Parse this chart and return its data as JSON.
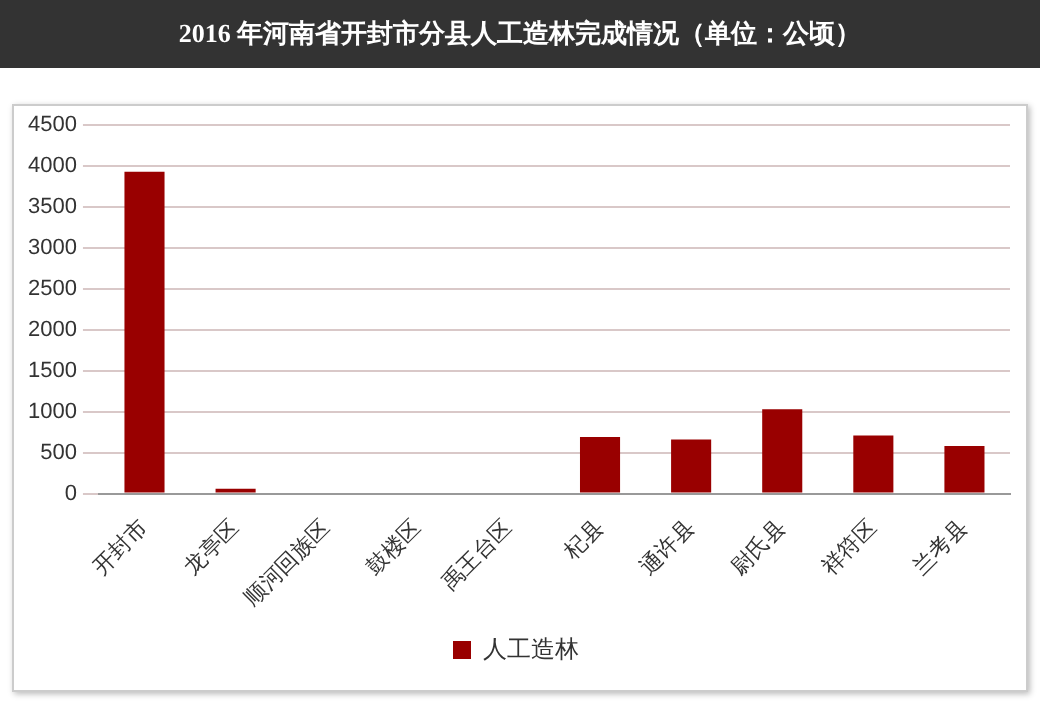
{
  "chart_data": {
    "type": "bar",
    "title": "2016 年河南省开封市分县人工造林完成情况（单位：公顷）",
    "categories": [
      "开封市",
      "龙亭区",
      "顺河回族区",
      "鼓楼区",
      "禹王台区",
      "杞县",
      "通许县",
      "尉氏县",
      "祥符区",
      "兰考县"
    ],
    "series": [
      {
        "name": "人工造林",
        "color": "#990000",
        "values": [
          3930,
          60,
          0,
          0,
          0,
          690,
          660,
          1030,
          710,
          580
        ]
      }
    ],
    "ylim": [
      0,
      4500
    ],
    "yticks": [
      0,
      500,
      1000,
      1500,
      2000,
      2500,
      3000,
      3500,
      4000,
      4500
    ],
    "grid": "y",
    "legend": "bottom"
  }
}
